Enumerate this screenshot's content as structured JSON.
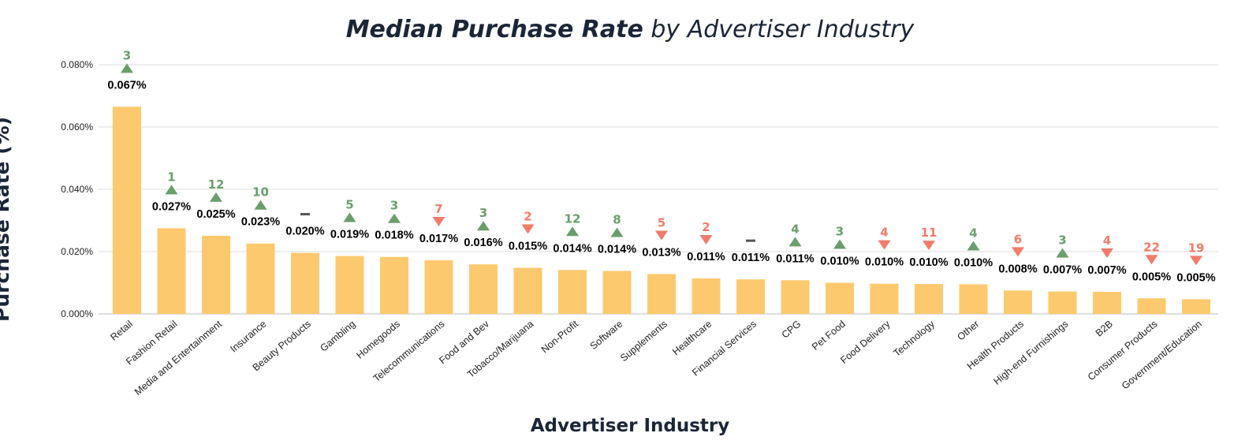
{
  "chart_data": {
    "type": "bar",
    "title_bold": "Median Purchase Rate",
    "title_rest": " by Advertiser Industry",
    "xlabel": "Advertiser Industry",
    "ylabel": "Purchase Rate (%)",
    "ylim": [
      0,
      0.08
    ],
    "y_ticks": [
      "0.000%",
      "0.020%",
      "0.040%",
      "0.060%",
      "0.080%"
    ],
    "y_tick_values": [
      0,
      0.02,
      0.04,
      0.06,
      0.08
    ],
    "grid": true,
    "bar_color": "#fdc96e",
    "up_color": "#6a9e6c",
    "down_color": "#f27b6b",
    "neutral_color": "#555555",
    "categories": [
      "Retail",
      "Fashion Retail",
      "Media and Entertainment",
      "Insurance",
      "Beauty Products",
      "Gambling",
      "Homegoods",
      "Telecommunications",
      "Food and Bev",
      "Tobacco/Marijuana",
      "Non-Profit",
      "Software",
      "Supplements",
      "Healthcare",
      "Financial Services",
      "CPG",
      "Pet Food",
      "Food Delivery",
      "Technology",
      "Other",
      "Health Products",
      "High-end Furnishings",
      "B2B",
      "Consumer Products",
      "Government/Education"
    ],
    "values": [
      0.0665,
      0.0275,
      0.0251,
      0.0226,
      0.0196,
      0.0186,
      0.0183,
      0.0172,
      0.0159,
      0.0148,
      0.0141,
      0.0138,
      0.0128,
      0.0114,
      0.0111,
      0.0108,
      0.01,
      0.0097,
      0.0096,
      0.0095,
      0.0075,
      0.0072,
      0.0071,
      0.005,
      0.0047
    ],
    "value_labels": [
      "0.067%",
      "0.027%",
      "0.025%",
      "0.023%",
      "0.020%",
      "0.019%",
      "0.018%",
      "0.017%",
      "0.016%",
      "0.015%",
      "0.014%",
      "0.014%",
      "0.013%",
      "0.011%",
      "0.011%",
      "0.011%",
      "0.010%",
      "0.010%",
      "0.010%",
      "0.010%",
      "0.008%",
      "0.007%",
      "0.007%",
      "0.005%",
      "0.005%"
    ],
    "rank_change": [
      {
        "dir": "up",
        "label": "3"
      },
      {
        "dir": "up",
        "label": "1"
      },
      {
        "dir": "up",
        "label": "12"
      },
      {
        "dir": "up",
        "label": "10"
      },
      {
        "dir": "none",
        "label": ""
      },
      {
        "dir": "up",
        "label": "5"
      },
      {
        "dir": "up",
        "label": "3"
      },
      {
        "dir": "down",
        "label": "7"
      },
      {
        "dir": "up",
        "label": "3"
      },
      {
        "dir": "down",
        "label": "2"
      },
      {
        "dir": "up",
        "label": "12"
      },
      {
        "dir": "up",
        "label": "8"
      },
      {
        "dir": "down",
        "label": "5"
      },
      {
        "dir": "down",
        "label": "2"
      },
      {
        "dir": "none",
        "label": ""
      },
      {
        "dir": "up",
        "label": "4"
      },
      {
        "dir": "up",
        "label": "3"
      },
      {
        "dir": "down",
        "label": "4"
      },
      {
        "dir": "down",
        "label": "11"
      },
      {
        "dir": "up",
        "label": "4"
      },
      {
        "dir": "down",
        "label": "6"
      },
      {
        "dir": "up",
        "label": "3"
      },
      {
        "dir": "down",
        "label": "4"
      },
      {
        "dir": "down",
        "label": "22"
      },
      {
        "dir": "down",
        "label": "19"
      }
    ]
  }
}
